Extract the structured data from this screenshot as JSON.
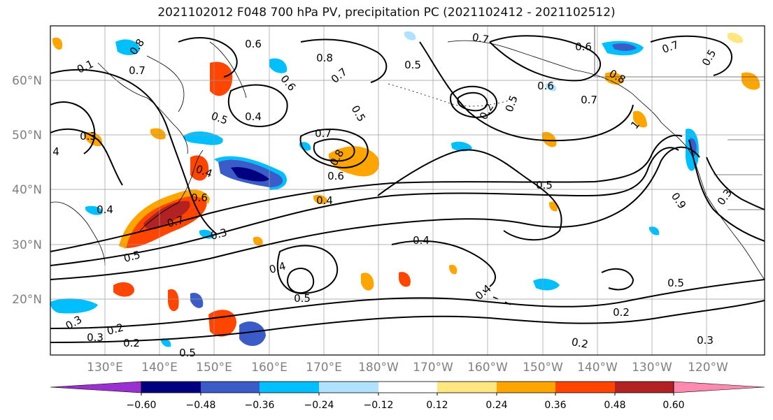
{
  "title": "2021102012 F048 700 hPa PV, precipitation PC (2021102412 - 2021102512)",
  "lat_labels": [
    "60°N",
    "50°N",
    "40°N",
    "30°N",
    "20°N"
  ],
  "lon_labels": [
    "130°E",
    "140°E",
    "150°E",
    "160°E",
    "170°E",
    "180°W",
    "170°W",
    "160°W",
    "150°W",
    "140°W",
    "130°W",
    "120°W"
  ],
  "colorbar": {
    "ticks": [
      "−0.60",
      "−0.48",
      "−0.36",
      "−0.24",
      "−0.12",
      "0.12",
      "0.24",
      "0.36",
      "0.48",
      "0.60"
    ],
    "colors": [
      "#9b30d0",
      "#000080",
      "#3a5bc8",
      "#00bfff",
      "#b0e2ff",
      "#ffffff",
      "#ffe680",
      "#ffa500",
      "#ff4500",
      "#b22222",
      "#ff8ab0"
    ]
  },
  "contour_labels": [
    "0.8",
    "0.6",
    "0.8",
    "0.7",
    "0.5",
    "0.7",
    "0.6",
    "0.7",
    "0.5",
    "0.6",
    "0.1",
    "0.7",
    "0.5",
    "0.4",
    "0.6",
    "0.7",
    "0.8",
    "0.5",
    "0.5",
    "0.6",
    "0.2",
    "0.7",
    "0.8",
    "1",
    "0.4",
    "0.3",
    "4",
    "0.4",
    "0.6",
    "0.4",
    "0.7",
    "0.5",
    "0.3",
    "0.4",
    "0.5",
    "0.4",
    "0.4",
    "0.5",
    "0.3",
    "0.5",
    "0.9",
    "0.3",
    "0.2",
    "0.2",
    "0.2",
    "0.2",
    "0.3",
    "0.5",
    "0.3"
  ]
}
